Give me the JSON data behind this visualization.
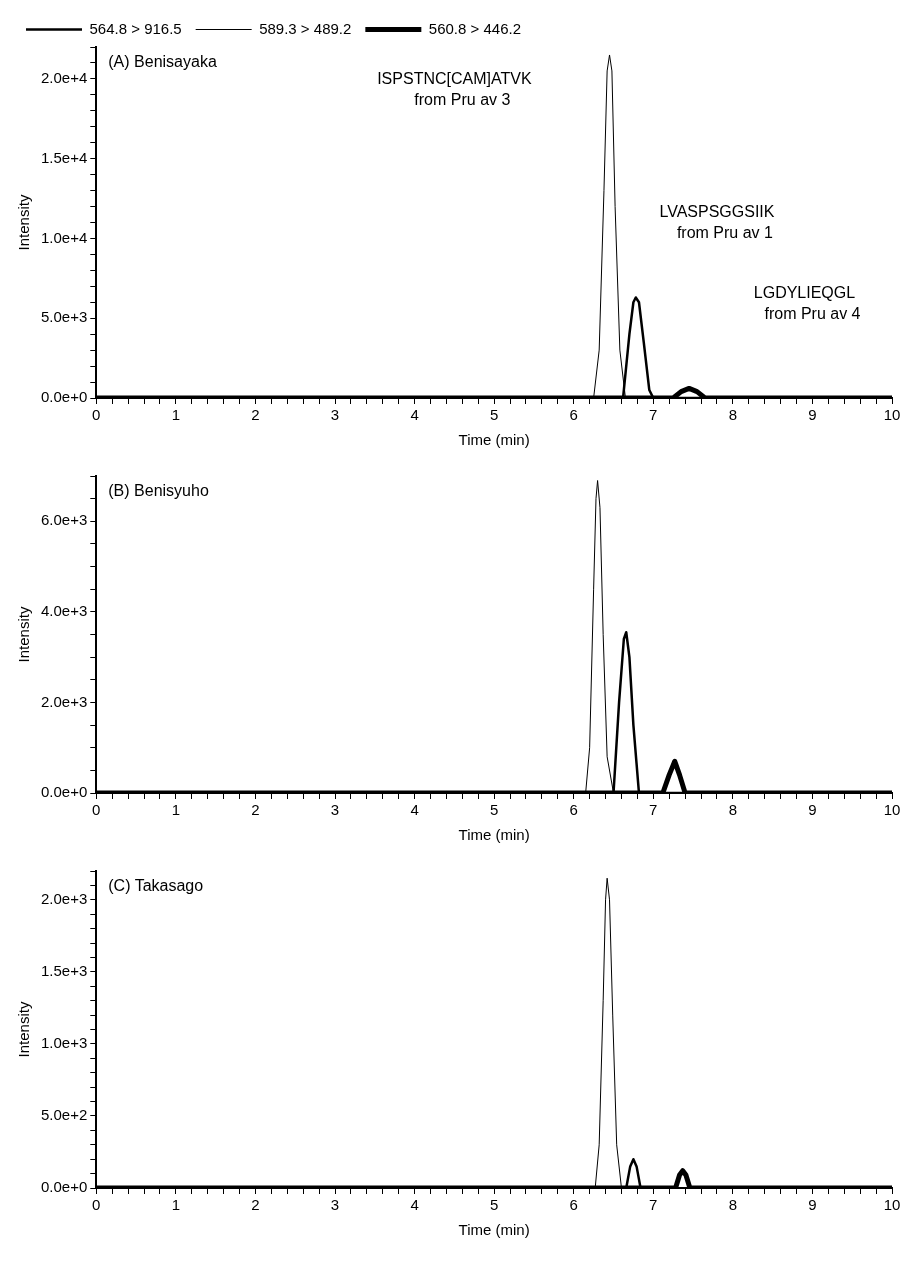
{
  "chart_data": [
    {
      "type": "line",
      "title": "(A) Benisayaka",
      "xlabel": "Time (min)",
      "ylabel": "Intensity",
      "legend": "top",
      "grid": false,
      "marker": "none",
      "xlim": [
        0,
        10
      ],
      "xticks": [
        0,
        {
          "value": 0.2,
          "label": null
        },
        {
          "value": 0.4,
          "label": null
        },
        {
          "value": 0.6,
          "label": null
        },
        {
          "value": 0.8,
          "label": null
        },
        1,
        {
          "value": 1.2,
          "label": null
        },
        {
          "value": 1.4,
          "label": null
        },
        {
          "value": 1.6,
          "label": null
        },
        {
          "value": 1.8,
          "label": null
        },
        2,
        {
          "value": 2.2,
          "label": null
        },
        {
          "value": 2.4,
          "label": null
        },
        {
          "value": 2.6,
          "label": null
        },
        {
          "value": 2.8,
          "label": null
        },
        3,
        {
          "value": 3.2,
          "label": null
        },
        {
          "value": 3.4,
          "label": null
        },
        {
          "value": 3.6,
          "label": null
        },
        {
          "value": 3.8,
          "label": null
        },
        4,
        {
          "value": 4.2,
          "label": null
        },
        {
          "value": 4.4,
          "label": null
        },
        {
          "value": 4.6,
          "label": null
        },
        {
          "value": 4.8,
          "label": null
        },
        5,
        {
          "value": 5.2,
          "label": null
        },
        {
          "value": 5.4,
          "label": null
        },
        {
          "value": 5.6,
          "label": null
        },
        {
          "value": 5.8,
          "label": null
        },
        6,
        {
          "value": 6.2,
          "label": null
        },
        {
          "value": 6.4,
          "label": null
        },
        {
          "value": 6.6,
          "label": null
        },
        {
          "value": 6.8,
          "label": null
        },
        7,
        {
          "value": 7.2,
          "label": null
        },
        {
          "value": 7.4,
          "label": null
        },
        {
          "value": 7.6,
          "label": null
        },
        {
          "value": 7.8,
          "label": null
        },
        8,
        {
          "value": 8.2,
          "label": null
        },
        {
          "value": 8.4,
          "label": null
        },
        {
          "value": 8.6,
          "label": null
        },
        {
          "value": 8.8,
          "label": null
        },
        9,
        {
          "value": 9.2,
          "label": null
        },
        {
          "value": 9.4,
          "label": null
        },
        {
          "value": 9.6,
          "label": null
        },
        {
          "value": 9.8,
          "label": null
        },
        10
      ],
      "ylim": [
        0,
        22000
      ],
      "yticks": [
        {
          "value": 0,
          "label": "0.0e+0"
        },
        {
          "value": 1000,
          "label": null
        },
        {
          "value": 2000,
          "label": null
        },
        {
          "value": 3000,
          "label": null
        },
        {
          "value": 4000,
          "label": null
        },
        {
          "value": 5000,
          "label": "5.0e+3"
        },
        {
          "value": 6000,
          "label": null
        },
        {
          "value": 7000,
          "label": null
        },
        {
          "value": 8000,
          "label": null
        },
        {
          "value": 9000,
          "label": null
        },
        {
          "value": 10000,
          "label": "1.0e+4"
        },
        {
          "value": 11000,
          "label": null
        },
        {
          "value": 12000,
          "label": null
        },
        {
          "value": 13000,
          "label": null
        },
        {
          "value": 14000,
          "label": null
        },
        {
          "value": 15000,
          "label": "1.5e+4"
        },
        {
          "value": 16000,
          "label": null
        },
        {
          "value": 17000,
          "label": null
        },
        {
          "value": 18000,
          "label": null
        },
        {
          "value": 19000,
          "label": null
        },
        {
          "value": 20000,
          "label": "2.0e+4"
        },
        {
          "value": 21000,
          "label": null
        },
        {
          "value": 22000,
          "label": null
        }
      ],
      "annotations": [
        "ISPSTNC[CAM]ATVK\nfrom Pru av 3",
        "LVASPSGGSIIK\nfrom Pru av 1",
        "LGDYLIEQGL\nfrom Pru av 4"
      ],
      "series": [
        {
          "name": "564.8 > 916.5",
          "color": "#000000",
          "x": [
            0,
            6.62,
            6.7,
            6.75,
            6.78,
            6.82,
            6.88,
            6.95,
            7.0,
            10
          ],
          "values": [
            0,
            0,
            4000,
            6000,
            6300,
            6000,
            3500,
            500,
            0,
            0
          ]
        },
        {
          "name": "589.3 > 489.2",
          "color": "#000000",
          "x": [
            0,
            6.25,
            6.32,
            6.38,
            6.42,
            6.45,
            6.48,
            6.52,
            6.58,
            6.65,
            10
          ],
          "values": [
            0,
            0,
            3000,
            13000,
            20500,
            21500,
            20500,
            12000,
            3000,
            0,
            0
          ]
        },
        {
          "name": "560.8 > 446.2",
          "color": "#000000",
          "x": [
            0,
            7.25,
            7.35,
            7.45,
            7.55,
            7.65,
            10
          ],
          "values": [
            0,
            0,
            400,
            600,
            400,
            0,
            0
          ]
        }
      ]
    },
    {
      "type": "line",
      "title": "(B) Benisyuho",
      "xlabel": "Time (min)",
      "ylabel": "Intensity",
      "grid": false,
      "marker": "none",
      "xlim": [
        0,
        10
      ],
      "xticks": [
        0,
        {
          "value": 0.2,
          "label": null
        },
        {
          "value": 0.4,
          "label": null
        },
        {
          "value": 0.6,
          "label": null
        },
        {
          "value": 0.8,
          "label": null
        },
        1,
        {
          "value": 1.2,
          "label": null
        },
        {
          "value": 1.4,
          "label": null
        },
        {
          "value": 1.6,
          "label": null
        },
        {
          "value": 1.8,
          "label": null
        },
        2,
        {
          "value": 2.2,
          "label": null
        },
        {
          "value": 2.4,
          "label": null
        },
        {
          "value": 2.6,
          "label": null
        },
        {
          "value": 2.8,
          "label": null
        },
        3,
        {
          "value": 3.2,
          "label": null
        },
        {
          "value": 3.4,
          "label": null
        },
        {
          "value": 3.6,
          "label": null
        },
        {
          "value": 3.8,
          "label": null
        },
        4,
        {
          "value": 4.2,
          "label": null
        },
        {
          "value": 4.4,
          "label": null
        },
        {
          "value": 4.6,
          "label": null
        },
        {
          "value": 4.8,
          "label": null
        },
        5,
        {
          "value": 5.2,
          "label": null
        },
        {
          "value": 5.4,
          "label": null
        },
        {
          "value": 5.6,
          "label": null
        },
        {
          "value": 5.8,
          "label": null
        },
        6,
        {
          "value": 6.2,
          "label": null
        },
        {
          "value": 6.4,
          "label": null
        },
        {
          "value": 6.6,
          "label": null
        },
        {
          "value": 6.8,
          "label": null
        },
        7,
        {
          "value": 7.2,
          "label": null
        },
        {
          "value": 7.4,
          "label": null
        },
        {
          "value": 7.6,
          "label": null
        },
        {
          "value": 7.8,
          "label": null
        },
        8,
        {
          "value": 8.2,
          "label": null
        },
        {
          "value": 8.4,
          "label": null
        },
        {
          "value": 8.6,
          "label": null
        },
        {
          "value": 8.8,
          "label": null
        },
        9,
        {
          "value": 9.2,
          "label": null
        },
        {
          "value": 9.4,
          "label": null
        },
        {
          "value": 9.6,
          "label": null
        },
        {
          "value": 9.8,
          "label": null
        },
        10
      ],
      "ylim": [
        0,
        7000
      ],
      "yticks": [
        {
          "value": 0,
          "label": "0.0e+0"
        },
        {
          "value": 500,
          "label": null
        },
        {
          "value": 1000,
          "label": null
        },
        {
          "value": 1500,
          "label": null
        },
        {
          "value": 2000,
          "label": "2.0e+3"
        },
        {
          "value": 2500,
          "label": null
        },
        {
          "value": 3000,
          "label": null
        },
        {
          "value": 3500,
          "label": null
        },
        {
          "value": 4000,
          "label": "4.0e+3"
        },
        {
          "value": 4500,
          "label": null
        },
        {
          "value": 5000,
          "label": null
        },
        {
          "value": 5500,
          "label": null
        },
        {
          "value": 6000,
          "label": "6.0e+3"
        },
        {
          "value": 6500,
          "label": null
        },
        {
          "value": 7000,
          "label": null
        }
      ],
      "series": [
        {
          "color": "#000000",
          "x": [
            0,
            6.5,
            6.57,
            6.63,
            6.66,
            6.7,
            6.75,
            6.82,
            10
          ],
          "values": [
            0,
            0,
            2000,
            3400,
            3550,
            3000,
            1500,
            0,
            0
          ]
        },
        {
          "color": "#000000",
          "x": [
            0,
            6.15,
            6.2,
            6.25,
            6.28,
            6.3,
            6.33,
            6.37,
            6.42,
            6.5,
            10
          ],
          "values": [
            0,
            0,
            1000,
            4500,
            6500,
            6900,
            6300,
            3500,
            800,
            0,
            0
          ]
        },
        {
          "color": "#000000",
          "x": [
            0,
            7.12,
            7.2,
            7.27,
            7.33,
            7.4,
            10
          ],
          "values": [
            0,
            0,
            400,
            700,
            400,
            0,
            0
          ]
        }
      ]
    },
    {
      "type": "line",
      "title": "(C) Takasago",
      "xlabel": "Time (min)",
      "ylabel": "Intensity",
      "grid": false,
      "marker": "none",
      "xlim": [
        0,
        10
      ],
      "xticks": [
        0,
        {
          "value": 0.2,
          "label": null
        },
        {
          "value": 0.4,
          "label": null
        },
        {
          "value": 0.6,
          "label": null
        },
        {
          "value": 0.8,
          "label": null
        },
        1,
        {
          "value": 1.2,
          "label": null
        },
        {
          "value": 1.4,
          "label": null
        },
        {
          "value": 1.6,
          "label": null
        },
        {
          "value": 1.8,
          "label": null
        },
        2,
        {
          "value": 2.2,
          "label": null
        },
        {
          "value": 2.4,
          "label": null
        },
        {
          "value": 2.6,
          "label": null
        },
        {
          "value": 2.8,
          "label": null
        },
        3,
        {
          "value": 3.2,
          "label": null
        },
        {
          "value": 3.4,
          "label": null
        },
        {
          "value": 3.6,
          "label": null
        },
        {
          "value": 3.8,
          "label": null
        },
        4,
        {
          "value": 4.2,
          "label": null
        },
        {
          "value": 4.4,
          "label": null
        },
        {
          "value": 4.6,
          "label": null
        },
        {
          "value": 4.8,
          "label": null
        },
        5,
        {
          "value": 5.2,
          "label": null
        },
        {
          "value": 5.4,
          "label": null
        },
        {
          "value": 5.6,
          "label": null
        },
        {
          "value": 5.8,
          "label": null
        },
        6,
        {
          "value": 6.2,
          "label": null
        },
        {
          "value": 6.4,
          "label": null
        },
        {
          "value": 6.6,
          "label": null
        },
        {
          "value": 6.8,
          "label": null
        },
        7,
        {
          "value": 7.2,
          "label": null
        },
        {
          "value": 7.4,
          "label": null
        },
        {
          "value": 7.6,
          "label": null
        },
        {
          "value": 7.8,
          "label": null
        },
        8,
        {
          "value": 8.2,
          "label": null
        },
        {
          "value": 8.4,
          "label": null
        },
        {
          "value": 8.6,
          "label": null
        },
        {
          "value": 8.8,
          "label": null
        },
        9,
        {
          "value": 9.2,
          "label": null
        },
        {
          "value": 9.4,
          "label": null
        },
        {
          "value": 9.6,
          "label": null
        },
        {
          "value": 9.8,
          "label": null
        },
        10
      ],
      "ylim": [
        0,
        2200
      ],
      "yticks": [
        {
          "value": 0,
          "label": "0.0e+0"
        },
        {
          "value": 100,
          "label": null
        },
        {
          "value": 200,
          "label": null
        },
        {
          "value": 300,
          "label": null
        },
        {
          "value": 400,
          "label": null
        },
        {
          "value": 500,
          "label": "5.0e+2"
        },
        {
          "value": 600,
          "label": null
        },
        {
          "value": 700,
          "label": null
        },
        {
          "value": 800,
          "label": null
        },
        {
          "value": 900,
          "label": null
        },
        {
          "value": 1000,
          "label": "1.0e+3"
        },
        {
          "value": 1100,
          "label": null
        },
        {
          "value": 1200,
          "label": null
        },
        {
          "value": 1300,
          "label": null
        },
        {
          "value": 1400,
          "label": null
        },
        {
          "value": 1500,
          "label": "1.5e+3"
        },
        {
          "value": 1600,
          "label": null
        },
        {
          "value": 1700,
          "label": null
        },
        {
          "value": 1800,
          "label": null
        },
        {
          "value": 1900,
          "label": null
        },
        {
          "value": 2000,
          "label": "2.0e+3"
        },
        {
          "value": 2100,
          "label": null
        },
        {
          "value": 2200,
          "label": null
        }
      ],
      "series": [
        {
          "color": "#000000",
          "x": [
            6.66,
            6.71,
            6.75,
            6.79,
            6.84
          ],
          "values": [
            0,
            150,
            200,
            150,
            0
          ]
        },
        {
          "color": "#000000",
          "x": [
            0,
            6.27,
            6.32,
            6.37,
            6.4,
            6.42,
            6.45,
            6.49,
            6.54,
            6.6,
            10
          ],
          "values": [
            0,
            0,
            300,
            1300,
            2000,
            2150,
            2000,
            1200,
            300,
            0,
            0
          ]
        },
        {
          "color": "#000000",
          "x": [
            0,
            7.28,
            7.33,
            7.37,
            7.41,
            7.46,
            10
          ],
          "values": [
            0,
            0,
            90,
            120,
            90,
            0,
            0
          ]
        }
      ]
    }
  ]
}
